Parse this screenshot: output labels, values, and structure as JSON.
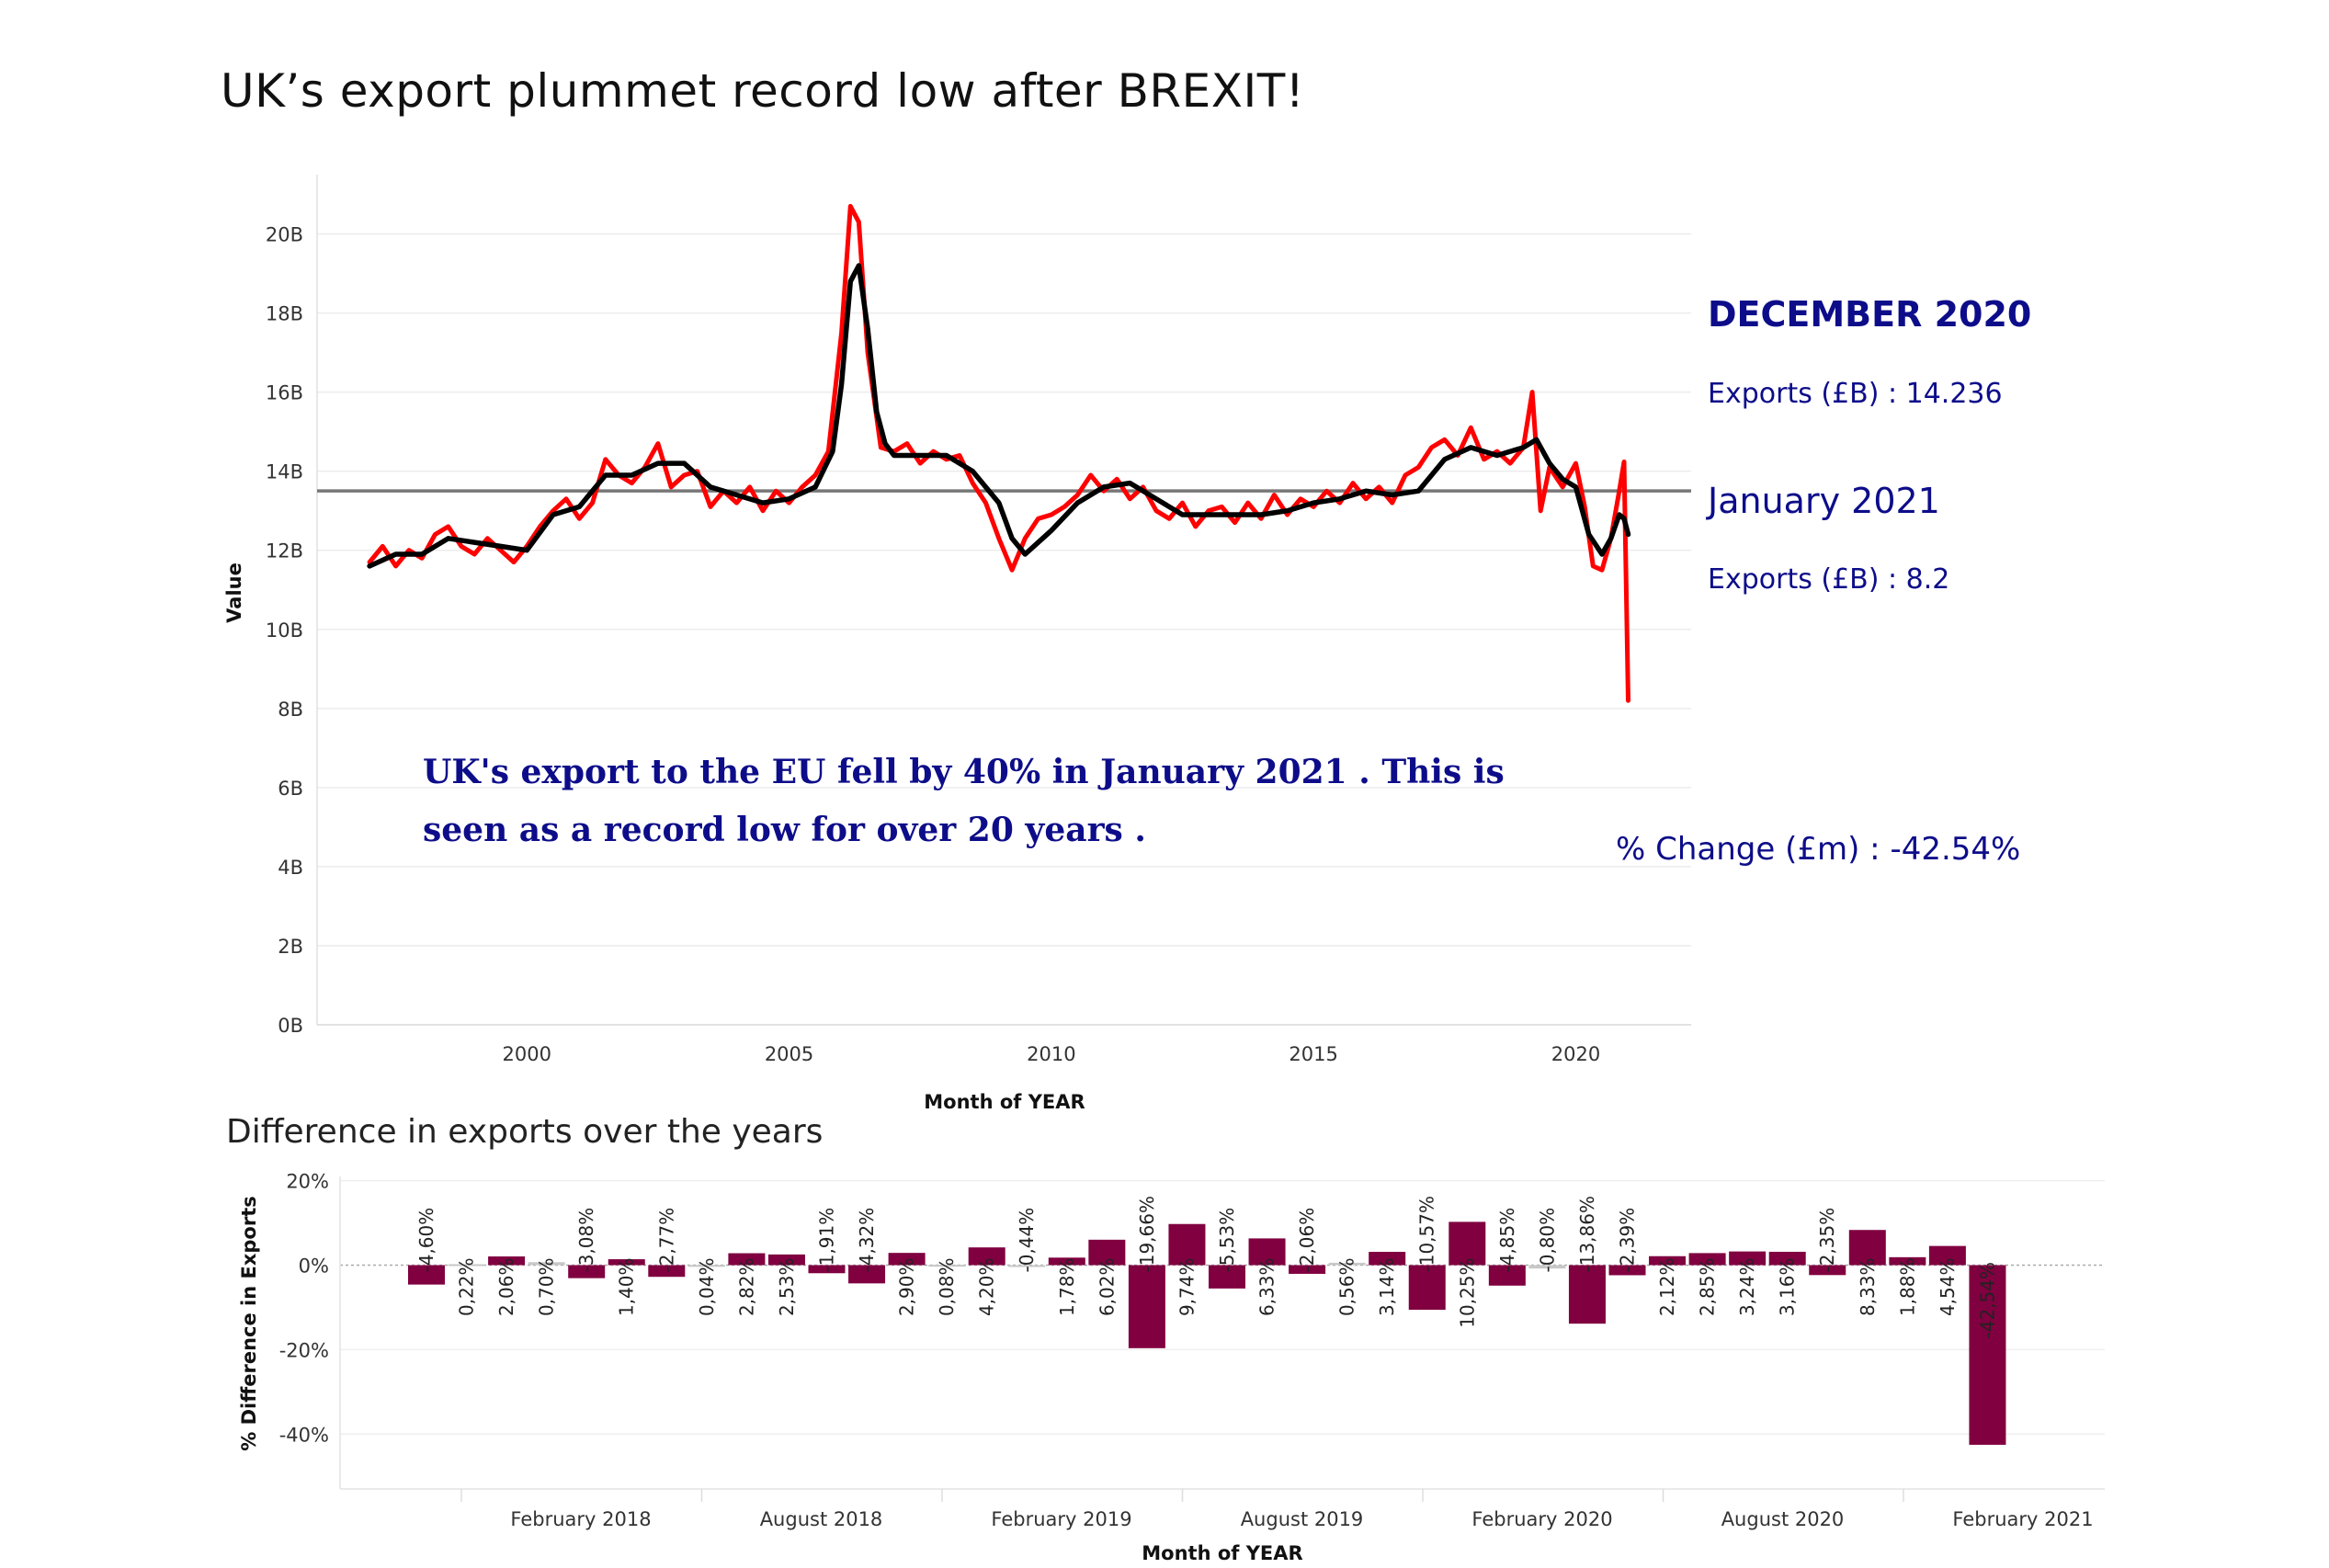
{
  "title": "UK’s export plummet record low after BREXIT!",
  "kpis": {
    "dec_heading": "DECEMBER 2020",
    "dec_value": "Exports (£B)  : 14.236",
    "jan_heading": "January 2021",
    "jan_value": "Exports (£B)  : 8.2",
    "pct_change": "% Change (£m) : -42.54%"
  },
  "annotation": {
    "line1": "UK's export to the EU fell by 40% in January 2021 . This is",
    "line2": "seen as a record low for over 20 years ."
  },
  "colors": {
    "raw": "#ff0000",
    "smoothed": "#000000",
    "reference": "#777777",
    "bar": "#800040",
    "bar_small": "#c8c8c8",
    "kpi": "#0d0d8a"
  },
  "chart_data": [
    {
      "type": "line",
      "xlabel": "Month of YEAR",
      "ylabel": "Value",
      "x_ticks": [
        2000,
        2005,
        2010,
        2015,
        2020
      ],
      "y_tick_labels": [
        "0B",
        "2B",
        "4B",
        "6B",
        "8B",
        "10B",
        "12B",
        "14B",
        "16B",
        "18B",
        "20B"
      ],
      "y_tick_values": [
        0,
        2,
        4,
        6,
        8,
        10,
        12,
        14,
        16,
        18,
        20
      ],
      "xlim": [
        1996.0,
        2022.2
      ],
      "ylim": [
        0,
        21.5
      ],
      "reference_line": 13.5,
      "series": [
        {
          "role": "raw",
          "x": [
            1997.0,
            1997.25,
            1997.5,
            1997.75,
            1998.0,
            1998.25,
            1998.5,
            1998.75,
            1999.0,
            1999.25,
            1999.5,
            1999.75,
            2000.0,
            2000.25,
            2000.5,
            2000.75,
            2001.0,
            2001.25,
            2001.5,
            2001.75,
            2002.0,
            2002.25,
            2002.5,
            2002.75,
            2003.0,
            2003.25,
            2003.5,
            2003.75,
            2004.0,
            2004.25,
            2004.5,
            2004.75,
            2005.0,
            2005.25,
            2005.5,
            2005.75,
            2006.0,
            2006.17,
            2006.33,
            2006.5,
            2006.75,
            2007.0,
            2007.25,
            2007.5,
            2007.75,
            2008.0,
            2008.25,
            2008.5,
            2008.75,
            2009.0,
            2009.25,
            2009.5,
            2009.75,
            2010.0,
            2010.25,
            2010.5,
            2010.75,
            2011.0,
            2011.25,
            2011.5,
            2011.75,
            2012.0,
            2012.25,
            2012.5,
            2012.75,
            2013.0,
            2013.25,
            2013.5,
            2013.75,
            2014.0,
            2014.25,
            2014.5,
            2014.75,
            2015.0,
            2015.25,
            2015.5,
            2015.75,
            2016.0,
            2016.25,
            2016.5,
            2016.75,
            2017.0,
            2017.25,
            2017.5,
            2017.75,
            2018.0,
            2018.25,
            2018.5,
            2018.75,
            2019.0,
            2019.17,
            2019.33,
            2019.5,
            2019.75,
            2020.0,
            2020.17,
            2020.33,
            2020.5,
            2020.67,
            2020.83,
            2020.92,
            2021.0
          ],
          "values": [
            11.7,
            12.1,
            11.6,
            12.0,
            11.8,
            12.4,
            12.6,
            12.1,
            11.9,
            12.3,
            12.0,
            11.7,
            12.1,
            12.6,
            13.0,
            13.3,
            12.8,
            13.2,
            14.3,
            13.9,
            13.7,
            14.1,
            14.7,
            13.6,
            13.9,
            14.0,
            13.1,
            13.5,
            13.2,
            13.6,
            13.0,
            13.5,
            13.2,
            13.6,
            13.9,
            14.5,
            17.5,
            20.7,
            20.3,
            17.0,
            14.6,
            14.5,
            14.7,
            14.2,
            14.5,
            14.3,
            14.4,
            13.7,
            13.2,
            12.3,
            11.5,
            12.3,
            12.8,
            12.9,
            13.1,
            13.4,
            13.9,
            13.5,
            13.8,
            13.3,
            13.6,
            13.0,
            12.8,
            13.2,
            12.6,
            13.0,
            13.1,
            12.7,
            13.2,
            12.8,
            13.4,
            12.9,
            13.3,
            13.1,
            13.5,
            13.2,
            13.7,
            13.3,
            13.6,
            13.2,
            13.9,
            14.1,
            14.6,
            14.8,
            14.4,
            15.1,
            14.3,
            14.5,
            14.2,
            14.6,
            16.0,
            13.0,
            14.1,
            13.6,
            14.2,
            13.1,
            11.6,
            11.5,
            12.3,
            13.5,
            14.236,
            8.2
          ]
        },
        {
          "role": "smoothed",
          "x": [
            1997.0,
            1997.5,
            1998.0,
            1998.5,
            1999.0,
            1999.5,
            2000.0,
            2000.5,
            2001.0,
            2001.5,
            2002.0,
            2002.5,
            2003.0,
            2003.5,
            2004.0,
            2004.5,
            2005.0,
            2005.5,
            2005.83,
            2006.0,
            2006.17,
            2006.33,
            2006.5,
            2006.67,
            2006.83,
            2007.0,
            2007.5,
            2008.0,
            2008.5,
            2009.0,
            2009.25,
            2009.5,
            2010.0,
            2010.5,
            2011.0,
            2011.5,
            2012.0,
            2012.5,
            2013.0,
            2013.5,
            2014.0,
            2014.5,
            2015.0,
            2015.5,
            2016.0,
            2016.5,
            2017.0,
            2017.5,
            2018.0,
            2018.5,
            2019.0,
            2019.25,
            2019.5,
            2019.75,
            2020.0,
            2020.25,
            2020.5,
            2020.67,
            2020.83,
            2020.92,
            2021.0
          ],
          "values": [
            11.6,
            11.9,
            11.9,
            12.3,
            12.2,
            12.1,
            12.0,
            12.9,
            13.1,
            13.9,
            13.9,
            14.2,
            14.2,
            13.6,
            13.4,
            13.2,
            13.3,
            13.6,
            14.5,
            16.2,
            18.8,
            19.2,
            17.6,
            15.5,
            14.7,
            14.4,
            14.4,
            14.4,
            14.0,
            13.2,
            12.3,
            11.9,
            12.5,
            13.2,
            13.6,
            13.7,
            13.3,
            12.9,
            12.9,
            12.9,
            12.9,
            13.0,
            13.2,
            13.3,
            13.5,
            13.4,
            13.5,
            14.3,
            14.6,
            14.4,
            14.6,
            14.8,
            14.2,
            13.8,
            13.6,
            12.4,
            11.9,
            12.3,
            12.9,
            12.8,
            12.4
          ]
        }
      ]
    },
    {
      "type": "bar",
      "title": "Difference in exports over the years",
      "xlabel": "Month of YEAR",
      "ylabel": "% Difference in Exports",
      "x_tick_labels": [
        "February 2018",
        "August 2018",
        "February 2019",
        "August 2019",
        "February 2020",
        "August 2020",
        "February 2021"
      ],
      "y_tick_labels": [
        "20%",
        "0%",
        "-20%",
        "-40%"
      ],
      "y_tick_values": [
        20,
        0,
        -20,
        -40
      ],
      "ylim": [
        -53,
        21
      ],
      "values": [
        -4.6,
        0.22,
        2.06,
        0.7,
        -3.08,
        1.4,
        -2.77,
        0.04,
        2.82,
        2.53,
        -1.91,
        -4.32,
        2.9,
        0.08,
        4.2,
        -0.44,
        1.78,
        6.02,
        -19.66,
        9.74,
        -5.53,
        6.33,
        -2.06,
        0.56,
        3.14,
        -10.57,
        10.25,
        -4.85,
        -0.8,
        -13.86,
        -2.39,
        2.12,
        2.85,
        3.24,
        3.16,
        -2.35,
        8.33,
        1.88,
        4.54,
        -42.54
      ],
      "labels": [
        "-4,60%",
        "0,22%",
        "2,06%",
        "0,70%",
        "-3,08%",
        "1,40%",
        "-2,77%",
        "0,04%",
        "2,82%",
        "2,53%",
        "-1,91%",
        "-4,32%",
        "2,90%",
        "0,08%",
        "4,20%",
        "-0,44%",
        "1,78%",
        "6,02%",
        "-19,66%",
        "9,74%",
        "-5,53%",
        "6,33%",
        "-2,06%",
        "0,56%",
        "3,14%",
        "-10,57%",
        "10,25%",
        "-4,85%",
        "-0,80%",
        "-13,86%",
        "-2,39%",
        "2,12%",
        "2,85%",
        "3,24%",
        "3,16%",
        "-2,35%",
        "8,33%",
        "1,88%",
        "4,54%",
        "-42,54%"
      ]
    }
  ]
}
